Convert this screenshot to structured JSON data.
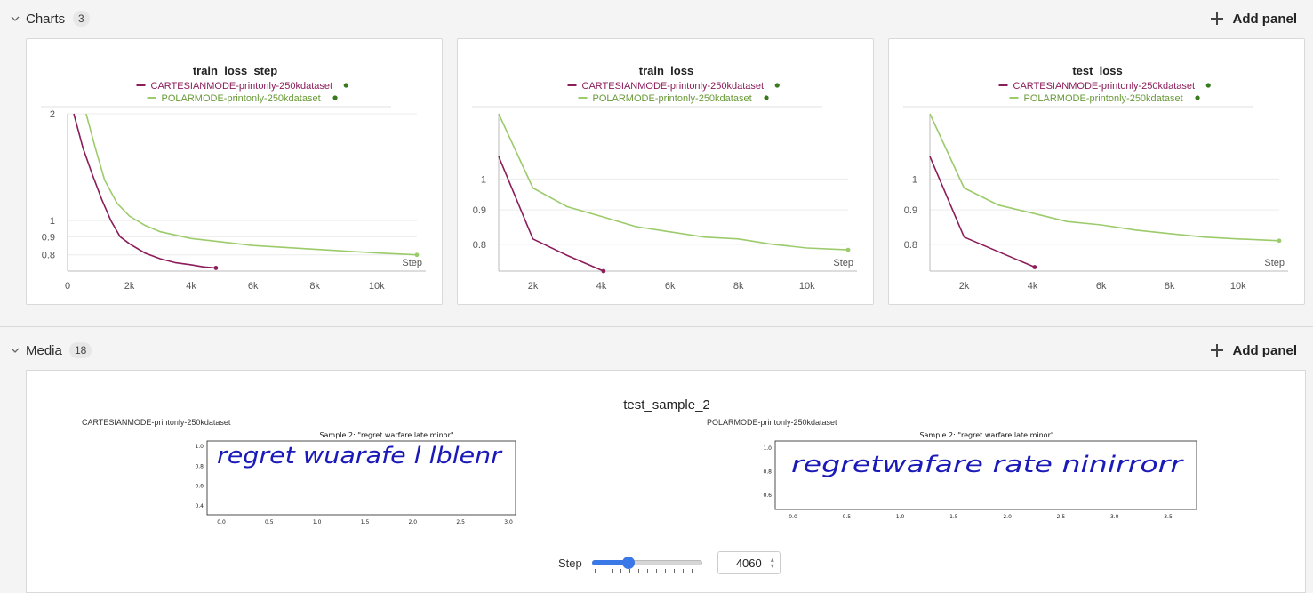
{
  "charts_section": {
    "title": "Charts",
    "count": "3",
    "add_panel_label": "Add panel"
  },
  "media_section": {
    "title": "Media",
    "count": "18",
    "add_panel_label": "Add panel"
  },
  "colors": {
    "cartesian": "#8b1d5a",
    "polar": "#9ccb6b",
    "legend_dot": "#3a7a1e",
    "slider": "#3b78e7"
  },
  "legend": {
    "cartesian": "CARTESIANMODE-printonly-250kdataset",
    "polar": "POLARMODE-printonly-250kdataset"
  },
  "chart_data": [
    {
      "type": "line",
      "title": "train_loss_step",
      "xlabel": "Step",
      "ylabel": "",
      "xlim": [
        0,
        11300
      ],
      "ylim": [
        0.72,
        2.0
      ],
      "y_scale": "log",
      "xticks": [
        "0",
        "2k",
        "4k",
        "6k",
        "8k",
        "10k"
      ],
      "yticks": [
        "2",
        "1",
        "0.9",
        "0.8"
      ],
      "legend_position": "top",
      "series": [
        {
          "name": "CARTESIANMODE-printonly-250kdataset",
          "x": [
            200,
            500,
            800,
            1100,
            1400,
            1700,
            2000,
            2500,
            3000,
            3500,
            4000,
            4400,
            4800
          ],
          "y": [
            2.0,
            1.6,
            1.35,
            1.15,
            1.0,
            0.9,
            0.86,
            0.81,
            0.78,
            0.76,
            0.75,
            0.74,
            0.735
          ]
        },
        {
          "name": "POLARMODE-printonly-250kdataset",
          "x": [
            600,
            900,
            1200,
            1600,
            2000,
            2500,
            3000,
            4000,
            5000,
            6000,
            7000,
            8000,
            9000,
            10000,
            11300
          ],
          "y": [
            2.0,
            1.6,
            1.3,
            1.12,
            1.03,
            0.97,
            0.93,
            0.89,
            0.87,
            0.85,
            0.84,
            0.83,
            0.82,
            0.81,
            0.8
          ]
        }
      ]
    },
    {
      "type": "line",
      "title": "train_loss",
      "xlabel": "Step",
      "ylabel": "",
      "xlim": [
        1000,
        11200
      ],
      "ylim": [
        0.73,
        1.25
      ],
      "y_scale": "log",
      "xticks": [
        "2k",
        "4k",
        "6k",
        "8k",
        "10k"
      ],
      "yticks": [
        "1",
        "0.9",
        "0.8"
      ],
      "legend_position": "top",
      "series": [
        {
          "name": "CARTESIANMODE-printonly-250kdataset",
          "x": [
            1000,
            2000,
            3000,
            4060
          ],
          "y": [
            1.08,
            0.815,
            0.77,
            0.73
          ]
        },
        {
          "name": "POLARMODE-printonly-250kdataset",
          "x": [
            1000,
            2000,
            3000,
            4000,
            5000,
            6000,
            7000,
            8000,
            9000,
            10000,
            11200
          ],
          "y": [
            1.25,
            0.97,
            0.91,
            0.88,
            0.85,
            0.835,
            0.82,
            0.815,
            0.8,
            0.79,
            0.785
          ]
        }
      ]
    },
    {
      "type": "line",
      "title": "test_loss",
      "xlabel": "Step",
      "ylabel": "",
      "xlim": [
        1000,
        11200
      ],
      "ylim": [
        0.73,
        1.25
      ],
      "y_scale": "log",
      "xticks": [
        "2k",
        "4k",
        "6k",
        "8k",
        "10k"
      ],
      "yticks": [
        "1",
        "0.9",
        "0.8"
      ],
      "legend_position": "top",
      "series": [
        {
          "name": "CARTESIANMODE-printonly-250kdataset",
          "x": [
            1000,
            2000,
            3000,
            4060
          ],
          "y": [
            1.08,
            0.82,
            0.78,
            0.74
          ]
        },
        {
          "name": "POLARMODE-printonly-250kdataset",
          "x": [
            1000,
            2000,
            3000,
            4000,
            5000,
            6000,
            7000,
            8000,
            9000,
            10000,
            11200
          ],
          "y": [
            1.25,
            0.97,
            0.915,
            0.89,
            0.865,
            0.855,
            0.84,
            0.83,
            0.82,
            0.815,
            0.81
          ]
        }
      ]
    }
  ],
  "media": {
    "panel_title": "test_sample_2",
    "left": {
      "run": "CARTESIANMODE-printonly-250kdataset",
      "plot_title": "Sample 2: \"regret warfare late minor\"",
      "handwriting": "regret wuarafe l lblenr",
      "yticks": [
        "1.0",
        "0.8",
        "0.6",
        "0.4"
      ],
      "xticks": [
        "0.0",
        "0.5",
        "1.0",
        "1.5",
        "2.0",
        "2.5",
        "3.0"
      ]
    },
    "right": {
      "run": "POLARMODE-printonly-250kdataset",
      "plot_title": "Sample 2: \"regret warfare late minor\"",
      "handwriting": "regretwafare rate ninirrorr",
      "yticks": [
        "1.0",
        "0.8",
        "0.6"
      ],
      "xticks": [
        "0.0",
        "0.5",
        "1.0",
        "1.5",
        "2.0",
        "2.5",
        "3.0",
        "3.5"
      ]
    },
    "step_label": "Step",
    "step_value": "4060",
    "step_fraction": 0.33
  }
}
